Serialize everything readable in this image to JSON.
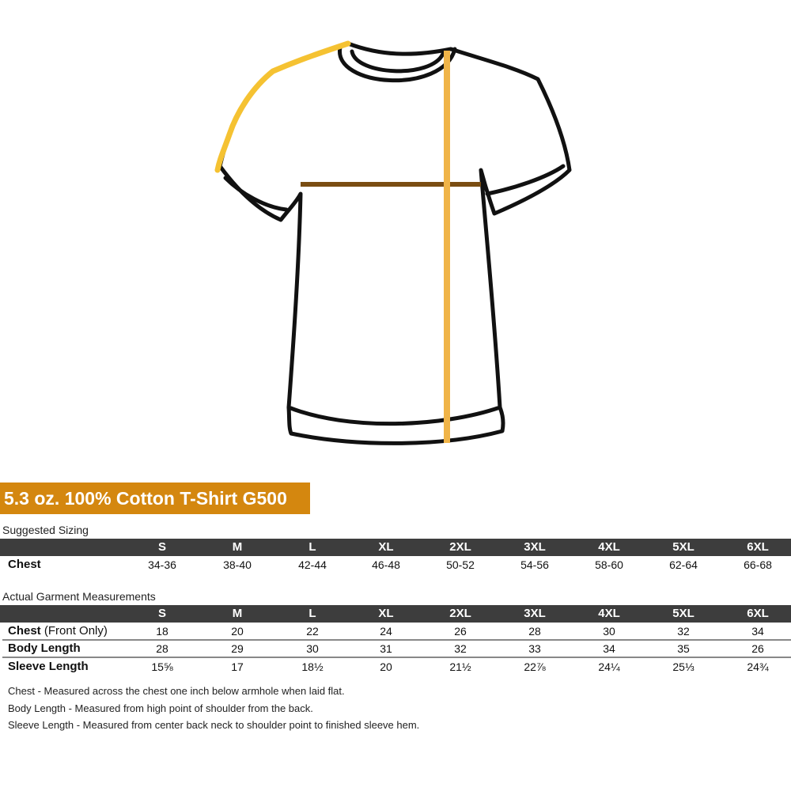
{
  "title": "5.3 oz. 100% Cotton T-Shirt G500",
  "colors": {
    "banner": "#d4870f",
    "header": "#3d3d3d",
    "shoulder_line": "#f5c232",
    "length_line": "#f0b448",
    "chest_line": "#7a4d12"
  },
  "sizes": [
    "S",
    "M",
    "L",
    "XL",
    "2XL",
    "3XL",
    "4XL",
    "5XL",
    "6XL"
  ],
  "suggested": {
    "label": "Suggested Sizing",
    "rows": [
      {
        "label": "Chest",
        "values": [
          "34-36",
          "38-40",
          "42-44",
          "46-48",
          "50-52",
          "54-56",
          "58-60",
          "62-64",
          "66-68"
        ]
      }
    ]
  },
  "actual": {
    "label": "Actual Garment Measurements",
    "rows": [
      {
        "label": "Chest",
        "sub": "(Front Only)",
        "values": [
          "18",
          "20",
          "22",
          "24",
          "26",
          "28",
          "30",
          "32",
          "34"
        ]
      },
      {
        "label": "Body Length",
        "sub": "",
        "values": [
          "28",
          "29",
          "30",
          "31",
          "32",
          "33",
          "34",
          "35",
          "26"
        ]
      },
      {
        "label": "Sleeve Length",
        "sub": "",
        "values": [
          "15⅝",
          "17",
          "18½",
          "20",
          "21½",
          "22⅞",
          "24¼",
          "25⅓",
          "24¾"
        ]
      }
    ]
  },
  "notes": [
    "Chest - Measured across the chest one inch below armhole when laid flat.",
    "Body Length - Measured from high point of shoulder from the back.",
    "Sleeve Length - Measured from center back neck to shoulder point to finished sleeve hem."
  ]
}
